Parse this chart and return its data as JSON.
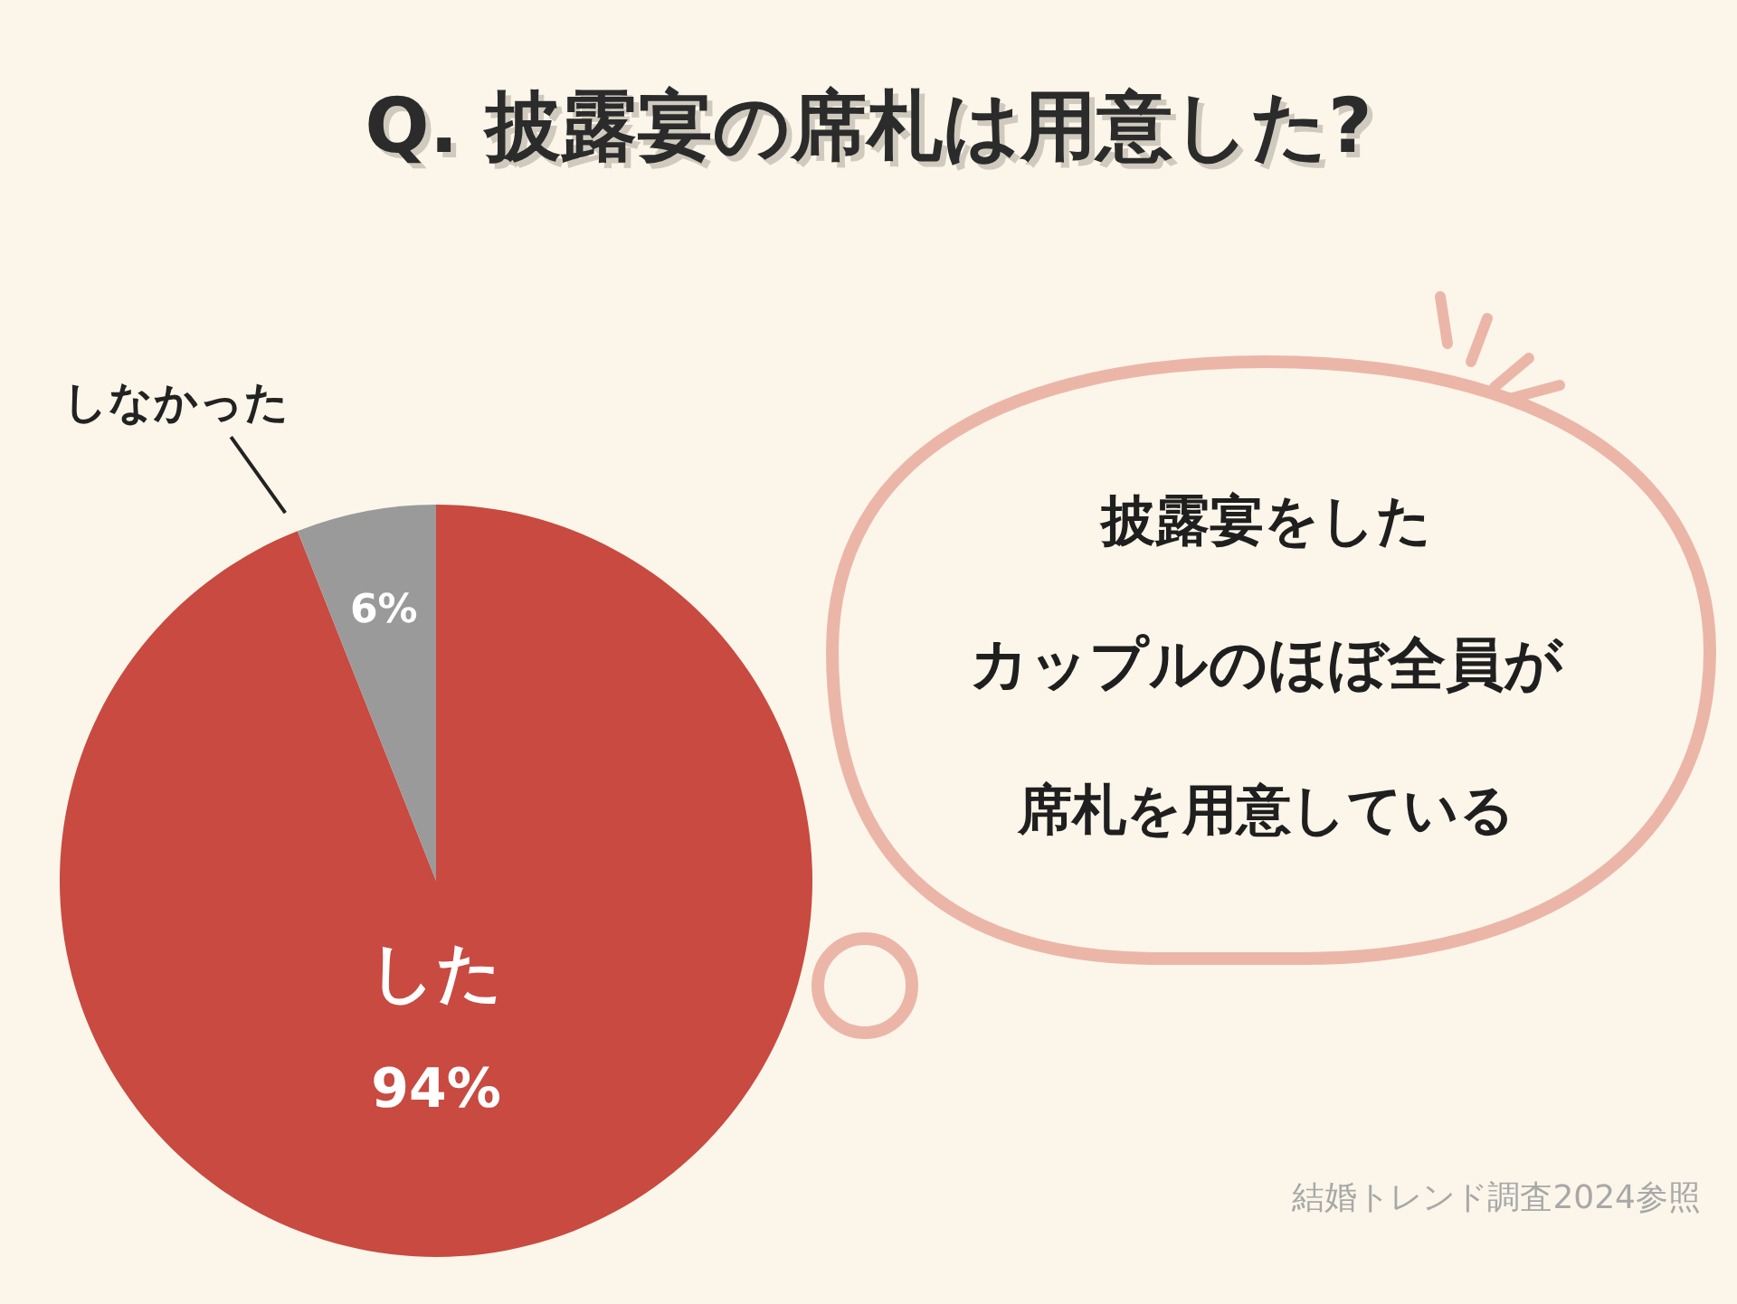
{
  "chart_data": {
    "type": "pie",
    "title": "Q. 披露宴の席札は用意した?",
    "categories": [
      "した",
      "しなかった"
    ],
    "values": [
      94,
      6
    ],
    "colors": [
      "#c84a40",
      "#9a9a9a"
    ],
    "value_labels": [
      "94%",
      "6%"
    ],
    "annotations": [
      "披露宴をした",
      "カップルのほぼ全員が",
      "席札を用意している",
      "結婚トレンド調査2024参照"
    ]
  }
}
